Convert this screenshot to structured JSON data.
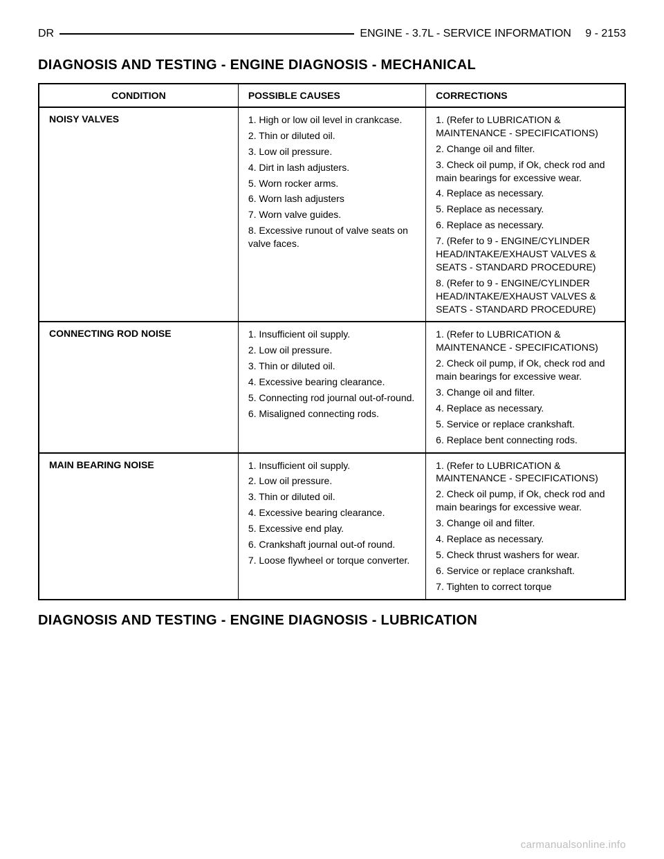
{
  "header": {
    "left": "DR",
    "right": "ENGINE - 3.7L - SERVICE INFORMATION  9 - 2153"
  },
  "section_title_top": "DIAGNOSIS AND TESTING - ENGINE DIAGNOSIS - MECHANICAL",
  "section_title_bottom": "DIAGNOSIS AND TESTING - ENGINE DIAGNOSIS - LUBRICATION",
  "table": {
    "columns": [
      "CONDITION",
      "POSSIBLE CAUSES",
      "CORRECTIONS"
    ],
    "col_widths_pct": [
      34,
      32,
      34
    ],
    "border_color": "#000000",
    "font_size_pt": 10,
    "groups": [
      {
        "condition": "NOISY VALVES",
        "rows": [
          {
            "cause": "1. High or low oil level in crankcase.",
            "correction": "1. (Refer to LUBRICATION & MAINTENANCE - SPECIFICATIONS)"
          },
          {
            "cause": "2. Thin or diluted oil.",
            "correction": "2. Change oil and filter."
          },
          {
            "cause": "3. Low oil pressure.",
            "correction": "3. Check oil pump, if Ok, check rod and main bearings for excessive wear."
          },
          {
            "cause": "4. Dirt in lash adjusters.",
            "correction": "4. Replace as necessary."
          },
          {
            "cause": "5. Worn rocker arms.",
            "correction": "5. Replace as necessary."
          },
          {
            "cause": "6. Worn lash adjusters",
            "correction": "6. Replace as necessary."
          },
          {
            "cause": "7. Worn valve guides.",
            "correction": "7. (Refer to 9 - ENGINE/CYLINDER HEAD/INTAKE/EXHAUST VALVES & SEATS - STANDARD PROCEDURE)"
          },
          {
            "cause": "8. Excessive runout of valve seats on valve faces.",
            "correction": "8. (Refer to 9 - ENGINE/CYLINDER HEAD/INTAKE/EXHAUST VALVES & SEATS - STANDARD PROCEDURE)"
          }
        ]
      },
      {
        "condition": "CONNECTING ROD NOISE",
        "rows": [
          {
            "cause": "1. Insufficient oil supply.",
            "correction": "1. (Refer to LUBRICATION & MAINTENANCE - SPECIFICATIONS)"
          },
          {
            "cause": "2. Low oil pressure.",
            "correction": "2. Check oil pump, if Ok, check rod and main bearings for excessive wear."
          },
          {
            "cause": "3. Thin or diluted oil.",
            "correction": "3. Change oil and filter."
          },
          {
            "cause": "4. Excessive bearing clearance.",
            "correction": "4. Replace as necessary."
          },
          {
            "cause": "5. Connecting rod journal out-of-round.",
            "correction": "5. Service or replace crankshaft."
          },
          {
            "cause": "6. Misaligned connecting rods.",
            "correction": "6. Replace bent connecting rods."
          }
        ]
      },
      {
        "condition": "MAIN BEARING NOISE",
        "rows": [
          {
            "cause": "1. Insufficient oil supply.",
            "correction": "1. (Refer to LUBRICATION & MAINTENANCE - SPECIFICATIONS)"
          },
          {
            "cause": "2. Low oil pressure.",
            "correction": "2. Check oil pump, if Ok, check rod and main bearings for excessive wear."
          },
          {
            "cause": "3. Thin or diluted oil.",
            "correction": "3. Change oil and filter."
          },
          {
            "cause": "4. Excessive bearing clearance.",
            "correction": "4. Replace as necessary."
          },
          {
            "cause": "5. Excessive end play.",
            "correction": "5. Check thrust washers for wear."
          },
          {
            "cause": "6. Crankshaft journal out-of round.",
            "correction": "6. Service or replace crankshaft."
          },
          {
            "cause": "7. Loose flywheel or torque converter.",
            "correction": "7. Tighten to correct torque"
          }
        ]
      }
    ]
  },
  "footer_text": "carmanualsonline.info"
}
